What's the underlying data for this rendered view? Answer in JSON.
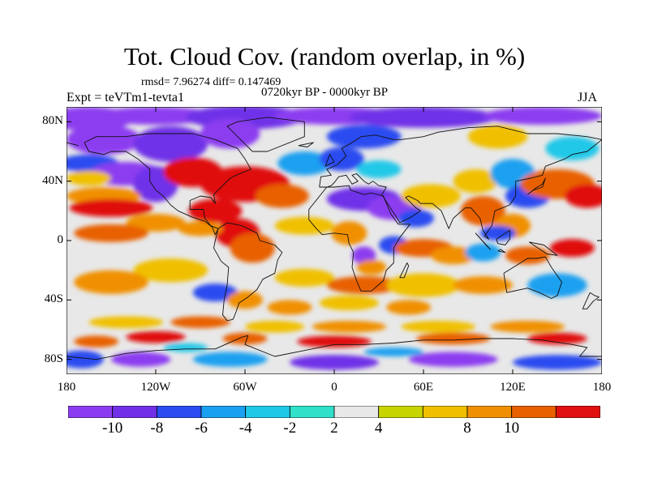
{
  "title": "Tot. Cloud Cov. (random overlap, in %)",
  "stats": "rmsd= 7.96274 diff= 0.147469",
  "expt": "Expt = teVTm1-tevta1",
  "period": "0720kyr BP - 0000kyr BP",
  "season": "JJA",
  "map": {
    "lat_labels": [
      "80N",
      "40N",
      "0",
      "40S",
      "80S"
    ],
    "lat_values": [
      80,
      40,
      0,
      -40,
      -80
    ],
    "lon_labels": [
      "180",
      "120W",
      "60W",
      "0",
      "60E",
      "120E",
      "180"
    ],
    "lon_values": [
      -180,
      -120,
      -60,
      0,
      60,
      120,
      180
    ],
    "lat_range": [
      -90,
      90
    ],
    "lon_range": [
      -180,
      180
    ],
    "projection": "cylindrical equidistant",
    "coastlines": true
  },
  "colorbar": {
    "labels": [
      "-10",
      "-8",
      "-6",
      "-4",
      "-2",
      "2",
      "4",
      "8",
      "10"
    ],
    "thresholds": [
      -10,
      -8,
      -6,
      -4,
      -2,
      2,
      4,
      6,
      8,
      10
    ],
    "colors": [
      "#8c3cf0",
      "#7030e8",
      "#2a4cf0",
      "#1aa0f0",
      "#20c8e8",
      "#30e0c8",
      "#e8e8e8",
      "#c8d400",
      "#f0c000",
      "#f09000",
      "#e86000",
      "#e01010"
    ]
  }
}
